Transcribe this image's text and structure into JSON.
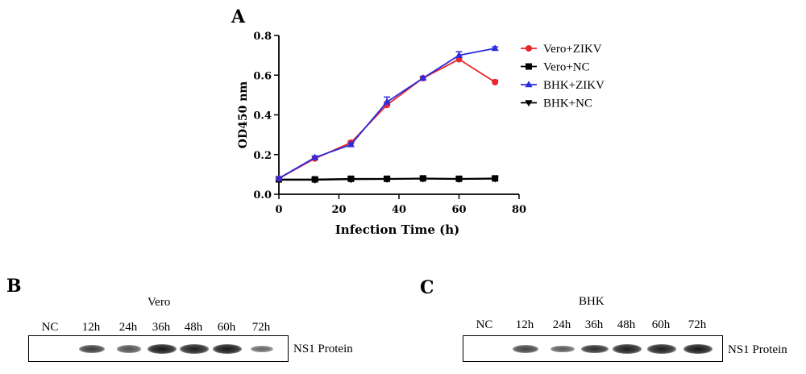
{
  "panel_a": {
    "letter": "A",
    "chart_data": {
      "type": "line",
      "title": "",
      "xlabel": "Infection Time (h)",
      "ylabel": "OD450 nm",
      "xlim": [
        0,
        80
      ],
      "ylim": [
        0,
        0.8
      ],
      "xticks": [
        0,
        20,
        40,
        60,
        80
      ],
      "yticks": [
        0.0,
        0.2,
        0.4,
        0.6,
        0.8
      ],
      "ytick_labels": [
        "0.0",
        "0.2",
        "0.4",
        "0.6",
        "0.8"
      ],
      "grid": false,
      "legend_position": "right",
      "x": [
        0,
        12,
        24,
        36,
        48,
        60,
        72
      ],
      "series": [
        {
          "name": "Vero+ZIKV",
          "color": "#e8262b",
          "marker": "circle",
          "values": [
            0.08,
            0.18,
            0.26,
            0.45,
            0.585,
            0.68,
            0.565
          ],
          "errors": [
            0.005,
            0.008,
            0.008,
            0.015,
            0.008,
            0.01,
            0.01
          ]
        },
        {
          "name": "Vero+NC",
          "color": "#000000",
          "marker": "square",
          "values": [
            0.075,
            0.075,
            0.078,
            0.078,
            0.08,
            0.078,
            0.08
          ],
          "errors": [
            0.003,
            0.003,
            0.003,
            0.003,
            0.003,
            0.003,
            0.003
          ]
        },
        {
          "name": "BHK+ZIKV",
          "color": "#2b2be0",
          "marker": "triangle-up",
          "values": [
            0.08,
            0.185,
            0.25,
            0.465,
            0.585,
            0.7,
            0.735
          ],
          "errors": [
            0.005,
            0.008,
            0.01,
            0.025,
            0.008,
            0.018,
            0.008
          ]
        },
        {
          "name": "BHK+NC",
          "color": "#000000",
          "marker": "triangle-down",
          "values": [
            0.072,
            0.072,
            0.075,
            0.076,
            0.078,
            0.076,
            0.078
          ],
          "errors": [
            0.003,
            0.003,
            0.003,
            0.003,
            0.003,
            0.003,
            0.003
          ]
        }
      ]
    }
  },
  "panel_b": {
    "letter": "B",
    "title": "Vero",
    "lanes": [
      "NC",
      "12h",
      "24h",
      "36h",
      "48h",
      "60h",
      "72h"
    ],
    "band_intensity": [
      0.0,
      0.75,
      0.6,
      1.0,
      0.95,
      1.0,
      0.45
    ],
    "protein_label": "NS1 Protein"
  },
  "panel_c": {
    "letter": "C",
    "title": "BHK",
    "lanes": [
      "NC",
      "12h",
      "24h",
      "36h",
      "48h",
      "60h",
      "72h"
    ],
    "band_intensity": [
      0.0,
      0.7,
      0.55,
      0.85,
      0.95,
      0.95,
      1.0
    ],
    "protein_label": "NS1 Protein"
  }
}
